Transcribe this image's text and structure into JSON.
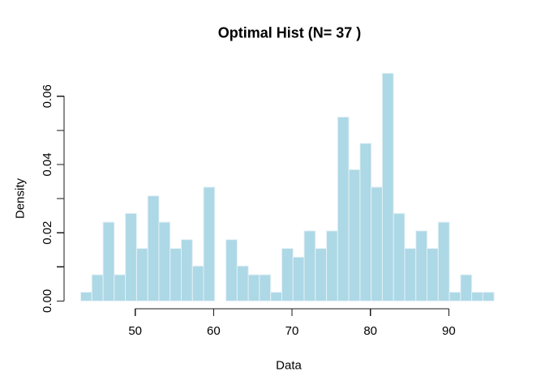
{
  "figure": {
    "title": "Optimal Hist (N= 37 )",
    "xlabel": "Data",
    "ylabel": "Density"
  },
  "colors": {
    "bar_fill": "#ADD8E6",
    "bar_border": "#E4F1F6",
    "axis": "#1A1A1A",
    "text": "#000000",
    "background": "#FFFFFF"
  },
  "chart_data": {
    "type": "bar",
    "subtype": "histogram",
    "title": "Optimal Hist (N= 37 )",
    "xlabel": "Data",
    "ylabel": "Density",
    "n_bins": 37,
    "bin_start": 43.05,
    "bin_width": 1.425,
    "counts": [
      1,
      3,
      9,
      3,
      10,
      6,
      12,
      9,
      6,
      7,
      4,
      13,
      0,
      7,
      4,
      3,
      3,
      1,
      6,
      5,
      8,
      6,
      8,
      21,
      15,
      18,
      13,
      26,
      10,
      6,
      8,
      6,
      9,
      1,
      3,
      1,
      1
    ],
    "densities": [
      0.00257,
      0.0077,
      0.0231,
      0.0077,
      0.02567,
      0.0154,
      0.0308,
      0.0231,
      0.0154,
      0.01797,
      0.01027,
      0.03337,
      0,
      0.01797,
      0.01027,
      0.0077,
      0.0077,
      0.00257,
      0.0154,
      0.01284,
      0.02054,
      0.0154,
      0.02054,
      0.05391,
      0.03851,
      0.04621,
      0.03337,
      0.06675,
      0.02567,
      0.0154,
      0.02054,
      0.0154,
      0.0231,
      0.00257,
      0.0077,
      0.00257,
      0.00257
    ],
    "x_ticks": [
      50,
      60,
      70,
      80,
      90
    ],
    "x_tick_labels": [
      "50",
      "60",
      "70",
      "80",
      "90"
    ],
    "y_ticks": [
      0,
      0.01,
      0.02,
      0.03,
      0.04,
      0.05,
      0.06
    ],
    "y_labeled_ticks": [
      0,
      0.02,
      0.04,
      0.06
    ],
    "y_tick_labels": [
      "0.00",
      "0.02",
      "0.04",
      "0.06"
    ],
    "xlim": [
      43.05,
      95.78
    ],
    "ylim": [
      0,
      0.0667
    ],
    "grid": false,
    "legend": false
  }
}
